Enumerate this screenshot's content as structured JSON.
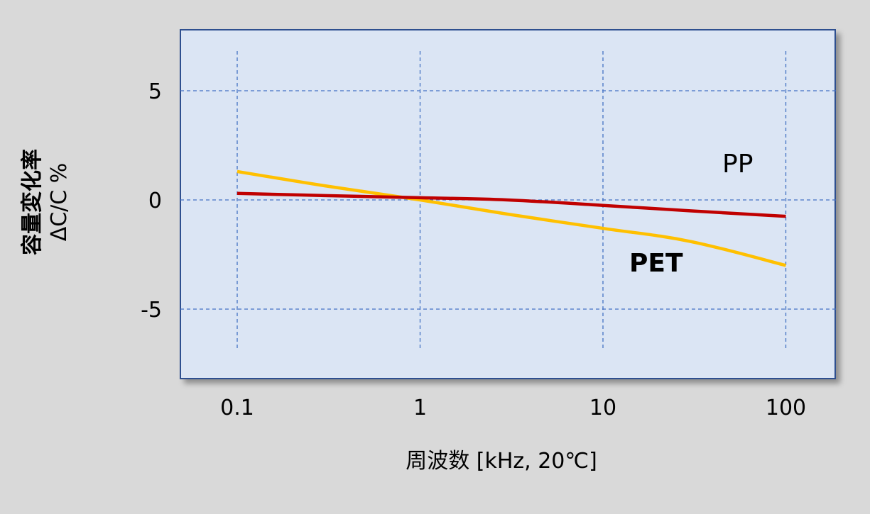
{
  "chart_data": {
    "type": "line",
    "xlabel": "周波数 [kHz, 20℃]",
    "ylabel": "容量変化率",
    "ylabel_sub": "ΔC/C %",
    "x_scale": "log",
    "xlim": [
      0.1,
      100
    ],
    "ylim": [
      -7,
      7
    ],
    "x_ticks": [
      0.1,
      1,
      10,
      100
    ],
    "x_tick_labels": [
      "0.1",
      "1",
      "10",
      "100"
    ],
    "y_ticks": [
      5,
      0,
      -5
    ],
    "y_tick_labels": [
      "5",
      "0",
      "-5"
    ],
    "grid": true,
    "series": [
      {
        "name": "PP",
        "color": "#c00000",
        "x": [
          0.1,
          0.3,
          1,
          3,
          10,
          30,
          100
        ],
        "y": [
          0.3,
          0.2,
          0.1,
          0.0,
          -0.25,
          -0.5,
          -0.75
        ]
      },
      {
        "name": "PET",
        "color": "#ffc000",
        "x": [
          0.1,
          0.3,
          1,
          3,
          10,
          30,
          100
        ],
        "y": [
          1.3,
          0.65,
          0.0,
          -0.65,
          -1.3,
          -1.9,
          -3.0
        ]
      }
    ]
  }
}
